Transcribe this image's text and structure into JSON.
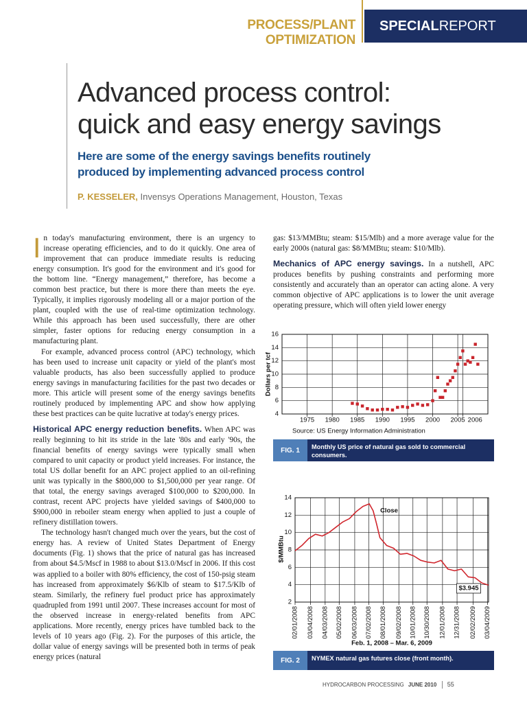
{
  "header": {
    "section": "PROCESS/PLANT OPTIMIZATION",
    "report_bold": "SPECIAL",
    "report": "REPORT"
  },
  "article": {
    "title_lines": [
      "Advanced process control:",
      "quick and easy energy savings"
    ],
    "subtitle_lines": [
      "Here are some of the energy savings benefits routinely",
      "produced by implementing advanced process control"
    ],
    "author": "P. KESSELER,",
    "affiliation": "Invensys Operations Management, Houston, Texas"
  },
  "body": {
    "left": [
      {
        "dropcap": "I",
        "text": "n today's manufacturing environment, there is an urgency to increase operating efficiencies, and to do it quickly. One area of improvement that can produce immediate results is reducing energy consumption. It's good for the environment and it's good for the bottom line. “Energy management,” therefore, has become a common best practice, but there is more there than meets the eye. Typically, it implies rigorously modeling all or a major portion of the plant, coupled with the use of real-time optimization technology. While this approach has been used successfully, there are other simpler, faster options for reducing energy consumption in a manufacturing plant."
      },
      {
        "text": "For example, advanced process control (APC) technology, which has been used to increase unit capacity or yield of the plant's most valuable products, has also been successfully applied to produce energy savings in manufacturing facilities for the past two decades or more. This article will present some of the energy savings benefits routinely produced by implementing APC and show how applying these best practices can be quite lucrative at today's energy prices."
      },
      {
        "heading": "Historical APC energy reduction benefits.",
        "text": "When APC was really beginning to hit its stride in the late '80s and early '90s, the financial benefits of energy savings were typically small when compared to unit capacity or product yield increases. For instance, the total US dollar benefit for an APC project applied to an oil-refining unit was typically in the $800,000 to $1,500,000 per year range. Of that total, the energy savings averaged $100,000 to $200,000. In contrast, recent APC projects have yielded savings of $400,000 to $900,000 in reboiler steam energy when applied to just a couple of refinery distillation towers."
      },
      {
        "text": "The technology hasn't changed much over the years, but the cost of energy has. A review of United States Department of Energy documents (Fig. 1) shows that the price of natural gas has increased from about $4.5/Mscf in 1988 to about $13.0/Mscf in 2006. If this cost was applied to a boiler with 80% efficiency, the cost of 150-psig steam has increased from approximately $6/Klb of steam to $17.5/Klb of steam. Similarly, the refinery fuel product price has approximately quadrupled from 1991 until 2007. These increases account for most of the observed increase in energy-related benefits from APC applications. More recently, energy prices have tumbled back to the levels of 10 years ago (Fig. 2). For the purposes of this article, the dollar value of energy savings will be presented both in terms of peak energy prices (natural"
      }
    ],
    "right": [
      {
        "noindent": true,
        "text": "gas: $13/MMBtu; steam: $15/Mlb) and a more average value for the early 2000s (natural gas: $8/MMBtu; steam: $10/Mlb)."
      },
      {
        "heading": "Mechanics of APC energy savings.",
        "text": "In a nutshell, APC produces benefits by pushing constraints and performing more consistently and accurately than an operator can acting alone. A very common objective of APC applications is to lower the unit average operating pressure, which will often yield lower energy"
      }
    ]
  },
  "chart_data": [
    {
      "type": "scatter",
      "ylabel": "Dollars per tcf",
      "source": "Source: US Energy Information Administration",
      "figure_label": "FIG. 1",
      "caption": "Monthly US price of natural gas sold to commercial consumers.",
      "color": "#c9252c",
      "grid": true,
      "x": [
        1984,
        1985,
        1986,
        1987,
        1988,
        1989,
        1990,
        1991,
        1992,
        1993,
        1994,
        1995,
        1996,
        1997,
        1998,
        1999,
        2000,
        2000.5,
        2001,
        2001.5,
        2002,
        2002.5,
        2003,
        2003.5,
        2004,
        2004.5,
        2005,
        2005.5,
        2006,
        2006.5,
        2007,
        2007.5,
        2008,
        2008.5,
        2009
      ],
      "values": [
        5.6,
        5.5,
        5.2,
        4.8,
        4.6,
        4.6,
        4.7,
        4.7,
        4.6,
        5.0,
        5.1,
        5.0,
        5.3,
        5.5,
        5.3,
        5.4,
        6.0,
        7.5,
        9.5,
        6.5,
        6.5,
        7.5,
        8.5,
        9.0,
        9.5,
        10.5,
        11.5,
        12.5,
        13.5,
        11.5,
        12.0,
        11.8,
        12.5,
        14.5,
        11.5
      ],
      "xlim": [
        1970,
        2011
      ],
      "xticks": [
        1975,
        1980,
        1985,
        1990,
        1995,
        2000,
        2005,
        2006
      ],
      "ylim": [
        4,
        16
      ],
      "yticks": [
        4,
        6,
        8,
        10,
        12,
        14,
        16
      ]
    },
    {
      "type": "line",
      "ylabel": "$/MMBtu",
      "xlabel": "Feb. 1, 2008 – Mar. 6, 2009",
      "figure_label": "FIG. 2",
      "caption": "NYMEX natural gas futures close (front month).",
      "color": "#d0262d",
      "grid": true,
      "annotations": [
        "Close",
        "$3.945"
      ],
      "x": [
        "02/01/2008",
        "02/15/2008",
        "02/29/2008",
        "03/14/2008",
        "03/28/2008",
        "04/11/2008",
        "04/25/2008",
        "05/09/2008",
        "05/23/2008",
        "06/06/2008",
        "06/20/2008",
        "07/03/2008",
        "07/11/2008",
        "07/18/2008",
        "07/25/2008",
        "08/08/2008",
        "08/22/2008",
        "09/05/2008",
        "09/19/2008",
        "10/03/2008",
        "10/17/2008",
        "10/31/2008",
        "11/14/2008",
        "11/28/2008",
        "12/12/2008",
        "12/26/2008",
        "01/09/2009",
        "01/23/2009",
        "02/06/2009",
        "02/20/2009",
        "03/06/2009"
      ],
      "values": [
        7.9,
        8.5,
        9.3,
        9.8,
        9.6,
        10.0,
        10.6,
        11.2,
        11.6,
        12.4,
        13.0,
        13.3,
        12.5,
        11.0,
        9.4,
        8.5,
        8.2,
        7.5,
        7.6,
        7.3,
        6.8,
        6.6,
        6.5,
        6.8,
        5.8,
        5.6,
        5.8,
        4.9,
        4.8,
        4.2,
        3.945
      ],
      "xlim": [
        "02/01/2008",
        "03/06/2009"
      ],
      "xticks": [
        "02/01/2008",
        "03/04/2008",
        "04/03/2008",
        "05/02/2008",
        "06/03/2008",
        "07/02/2008",
        "08/01/2008",
        "09/02/2008",
        "10/01/2008",
        "10/30/2008",
        "12/01/2008",
        "12/31/2008",
        "02/02/2009",
        "03/04/2009"
      ],
      "ylim": [
        2,
        14
      ],
      "yticks": [
        2,
        4,
        6,
        8,
        10,
        12,
        14
      ]
    }
  ],
  "footer": {
    "publication": "HYDROCARBON PROCESSING",
    "issue": "JUNE 2010",
    "page": "55"
  }
}
